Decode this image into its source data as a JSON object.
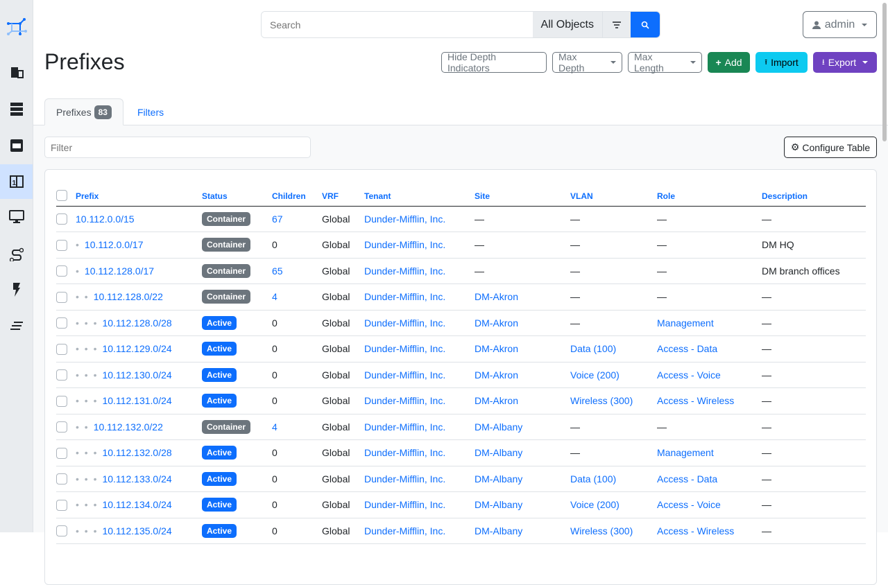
{
  "sidebar": {
    "items": [
      {
        "icon": "logo-icon"
      },
      {
        "icon": "organization-icon"
      },
      {
        "icon": "racks-icon"
      },
      {
        "icon": "devices-icon"
      },
      {
        "icon": "ipam-icon",
        "active": true
      },
      {
        "icon": "virtualization-icon"
      },
      {
        "icon": "circuits-icon"
      },
      {
        "icon": "power-icon"
      },
      {
        "icon": "other-icon"
      }
    ]
  },
  "header": {
    "search_placeholder": "Search",
    "search_scope": "All Objects",
    "user": "admin"
  },
  "page": {
    "title": "Prefixes"
  },
  "actions": {
    "hide_depth": "Hide Depth Indicators",
    "max_depth": "Max Depth",
    "max_length": "Max Length",
    "add": "Add",
    "import": "Import",
    "export": "Export"
  },
  "colors": {
    "primary": "#0d6efd",
    "add": "#198754",
    "import": "#0dcaf0",
    "export": "#6f42c1",
    "container": "#6c757d",
    "active": "#0d6efd"
  },
  "tabs": {
    "prefixes": "Prefixes",
    "count": "83",
    "filters": "Filters"
  },
  "table": {
    "filter_placeholder": "Filter",
    "configure": "Configure Table",
    "columns": [
      "Prefix",
      "Status",
      "Children",
      "VRF",
      "Tenant",
      "Site",
      "VLAN",
      "Role",
      "Description"
    ],
    "rows": [
      {
        "depth": 0,
        "prefix": "10.112.0.0/15",
        "status": "Container",
        "children": "67",
        "vrf": "Global",
        "tenant": "Dunder-Mifflin, Inc.",
        "site": "—",
        "vlan": "—",
        "role": "—",
        "desc": "—"
      },
      {
        "depth": 1,
        "prefix": "10.112.0.0/17",
        "status": "Container",
        "children": "0",
        "vrf": "Global",
        "tenant": "Dunder-Mifflin, Inc.",
        "site": "—",
        "vlan": "—",
        "role": "—",
        "desc": "DM HQ"
      },
      {
        "depth": 1,
        "prefix": "10.112.128.0/17",
        "status": "Container",
        "children": "65",
        "vrf": "Global",
        "tenant": "Dunder-Mifflin, Inc.",
        "site": "—",
        "vlan": "—",
        "role": "—",
        "desc": "DM branch offices"
      },
      {
        "depth": 2,
        "prefix": "10.112.128.0/22",
        "status": "Container",
        "children": "4",
        "vrf": "Global",
        "tenant": "Dunder-Mifflin, Inc.",
        "site": "DM-Akron",
        "vlan": "—",
        "role": "—",
        "desc": "—"
      },
      {
        "depth": 3,
        "prefix": "10.112.128.0/28",
        "status": "Active",
        "children": "0",
        "vrf": "Global",
        "tenant": "Dunder-Mifflin, Inc.",
        "site": "DM-Akron",
        "vlan": "—",
        "role": "Management",
        "desc": "—"
      },
      {
        "depth": 3,
        "prefix": "10.112.129.0/24",
        "status": "Active",
        "children": "0",
        "vrf": "Global",
        "tenant": "Dunder-Mifflin, Inc.",
        "site": "DM-Akron",
        "vlan": "Data (100)",
        "role": "Access - Data",
        "desc": "—"
      },
      {
        "depth": 3,
        "prefix": "10.112.130.0/24",
        "status": "Active",
        "children": "0",
        "vrf": "Global",
        "tenant": "Dunder-Mifflin, Inc.",
        "site": "DM-Akron",
        "vlan": "Voice (200)",
        "role": "Access - Voice",
        "desc": "—"
      },
      {
        "depth": 3,
        "prefix": "10.112.131.0/24",
        "status": "Active",
        "children": "0",
        "vrf": "Global",
        "tenant": "Dunder-Mifflin, Inc.",
        "site": "DM-Akron",
        "vlan": "Wireless (300)",
        "role": "Access - Wireless",
        "desc": "—"
      },
      {
        "depth": 2,
        "prefix": "10.112.132.0/22",
        "status": "Container",
        "children": "4",
        "vrf": "Global",
        "tenant": "Dunder-Mifflin, Inc.",
        "site": "DM-Albany",
        "vlan": "—",
        "role": "—",
        "desc": "—"
      },
      {
        "depth": 3,
        "prefix": "10.112.132.0/28",
        "status": "Active",
        "children": "0",
        "vrf": "Global",
        "tenant": "Dunder-Mifflin, Inc.",
        "site": "DM-Albany",
        "vlan": "—",
        "role": "Management",
        "desc": "—"
      },
      {
        "depth": 3,
        "prefix": "10.112.133.0/24",
        "status": "Active",
        "children": "0",
        "vrf": "Global",
        "tenant": "Dunder-Mifflin, Inc.",
        "site": "DM-Albany",
        "vlan": "Data (100)",
        "role": "Access - Data",
        "desc": "—"
      },
      {
        "depth": 3,
        "prefix": "10.112.134.0/24",
        "status": "Active",
        "children": "0",
        "vrf": "Global",
        "tenant": "Dunder-Mifflin, Inc.",
        "site": "DM-Albany",
        "vlan": "Voice (200)",
        "role": "Access - Voice",
        "desc": "—"
      },
      {
        "depth": 3,
        "prefix": "10.112.135.0/24",
        "status": "Active",
        "children": "0",
        "vrf": "Global",
        "tenant": "Dunder-Mifflin, Inc.",
        "site": "DM-Albany",
        "vlan": "Wireless (300)",
        "role": "Access - Wireless",
        "desc": "—"
      }
    ]
  }
}
